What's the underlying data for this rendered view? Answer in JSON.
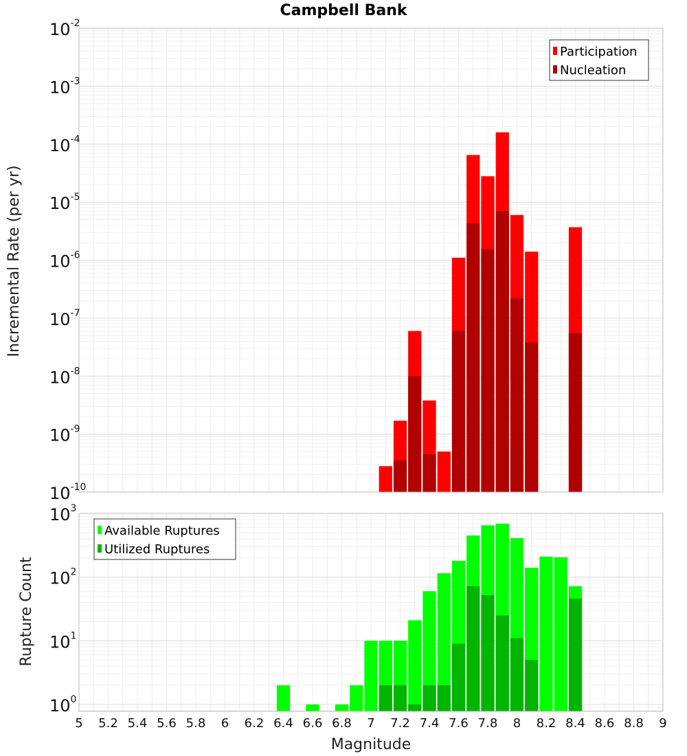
{
  "chart_data": [
    {
      "type": "bar",
      "title": "Campbell Bank",
      "xlabel": "",
      "ylabel": "Incremental Rate (per yr)",
      "y_scale": "log",
      "ylim": [
        1e-10,
        0.01
      ],
      "xlim": [
        5,
        9
      ],
      "grid": true,
      "legend_position": "top-right",
      "bin_width": 0.1,
      "overlay": true,
      "x": [
        7.1,
        7.2,
        7.3,
        7.4,
        7.5,
        7.6,
        7.7,
        7.8,
        7.9,
        8.0,
        8.1,
        8.4
      ],
      "series": [
        {
          "name": "Participation",
          "color": "#ff0000",
          "values": [
            2.8e-10,
            1.7e-09,
            6e-08,
            3.8e-09,
            5e-10,
            1.1e-06,
            6.5e-05,
            2.8e-05,
            0.00016,
            6e-06,
            1.4e-06,
            3.7e-06
          ]
        },
        {
          "name": "Nucleation",
          "color": "#b00000",
          "values": [
            null,
            3.5e-10,
            1e-08,
            4.5e-10,
            null,
            6e-08,
            4.3e-06,
            1.55e-06,
            7e-06,
            2.2e-07,
            3.8e-08,
            5.5e-08
          ]
        }
      ]
    },
    {
      "type": "bar",
      "title": "",
      "xlabel": "Magnitude",
      "ylabel": "Rupture Count",
      "y_scale": "log",
      "ylim": [
        0.78,
        1000
      ],
      "xlim": [
        5,
        9
      ],
      "grid": true,
      "legend_position": "top-left",
      "bin_width": 0.1,
      "overlay": true,
      "x": [
        6.4,
        6.6,
        6.8,
        6.9,
        7.0,
        7.1,
        7.2,
        7.3,
        7.4,
        7.5,
        7.6,
        7.7,
        7.8,
        7.9,
        8.0,
        8.1,
        8.2,
        8.3,
        8.4
      ],
      "series": [
        {
          "name": "Available Ruptures",
          "color": "#00ff00",
          "values": [
            2,
            1,
            1,
            2,
            10,
            10,
            10,
            21,
            60,
            115,
            180,
            450,
            650,
            690,
            410,
            140,
            210,
            205,
            72
          ]
        },
        {
          "name": "Utilized Ruptures",
          "color": "#00b400",
          "values": [
            null,
            null,
            null,
            null,
            null,
            2,
            2,
            1,
            2,
            2,
            9,
            72,
            52,
            25,
            11,
            5,
            null,
            null,
            46
          ]
        }
      ]
    }
  ],
  "x_ticks": [
    "5",
    "5.2",
    "5.4",
    "5.6",
    "5.8",
    "6",
    "6.2",
    "6.4",
    "6.6",
    "6.8",
    "7",
    "7.2",
    "7.4",
    "7.6",
    "7.8",
    "8",
    "8.2",
    "8.4",
    "8.6",
    "8.8",
    "9"
  ],
  "top_y_ticks": [
    {
      "base": "10",
      "exp": "-2",
      "value": 0.01
    },
    {
      "base": "10",
      "exp": "-3",
      "value": 0.001
    },
    {
      "base": "10",
      "exp": "-4",
      "value": 0.0001
    },
    {
      "base": "10",
      "exp": "-5",
      "value": 1e-05
    },
    {
      "base": "10",
      "exp": "-6",
      "value": 1e-06
    },
    {
      "base": "10",
      "exp": "-7",
      "value": 1e-07
    },
    {
      "base": "10",
      "exp": "-8",
      "value": 1e-08
    },
    {
      "base": "10",
      "exp": "-9",
      "value": 1e-09
    },
    {
      "base": "10",
      "exp": "-10",
      "value": 1e-10
    }
  ],
  "bottom_y_ticks": [
    {
      "base": "10",
      "exp": "3",
      "value": 1000
    },
    {
      "base": "10",
      "exp": "2",
      "value": 100
    },
    {
      "base": "10",
      "exp": "1",
      "value": 10
    },
    {
      "base": "10",
      "exp": "0",
      "value": 1
    }
  ]
}
